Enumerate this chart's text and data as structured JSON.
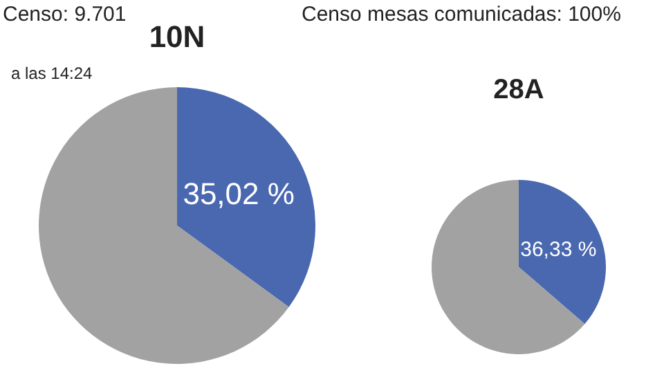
{
  "chart_data": [
    {
      "type": "pie",
      "title": "10N",
      "annotations": [
        "Censo: 9.701",
        "a las 14:24"
      ],
      "categories": [
        null,
        null
      ],
      "values": [
        35.02,
        64.98
      ],
      "colors": [
        "#4a68b0",
        "#a2a2a2"
      ],
      "value_labels": [
        "35,02 %",
        null
      ]
    },
    {
      "type": "pie",
      "title": "28A",
      "annotations": [
        "Censo mesas comunicadas: 100%"
      ],
      "categories": [
        null,
        null
      ],
      "values": [
        36.33,
        63.67
      ],
      "colors": [
        "#4a68b0",
        "#a2a2a2"
      ],
      "value_labels": [
        "36,33 %",
        null
      ]
    }
  ]
}
